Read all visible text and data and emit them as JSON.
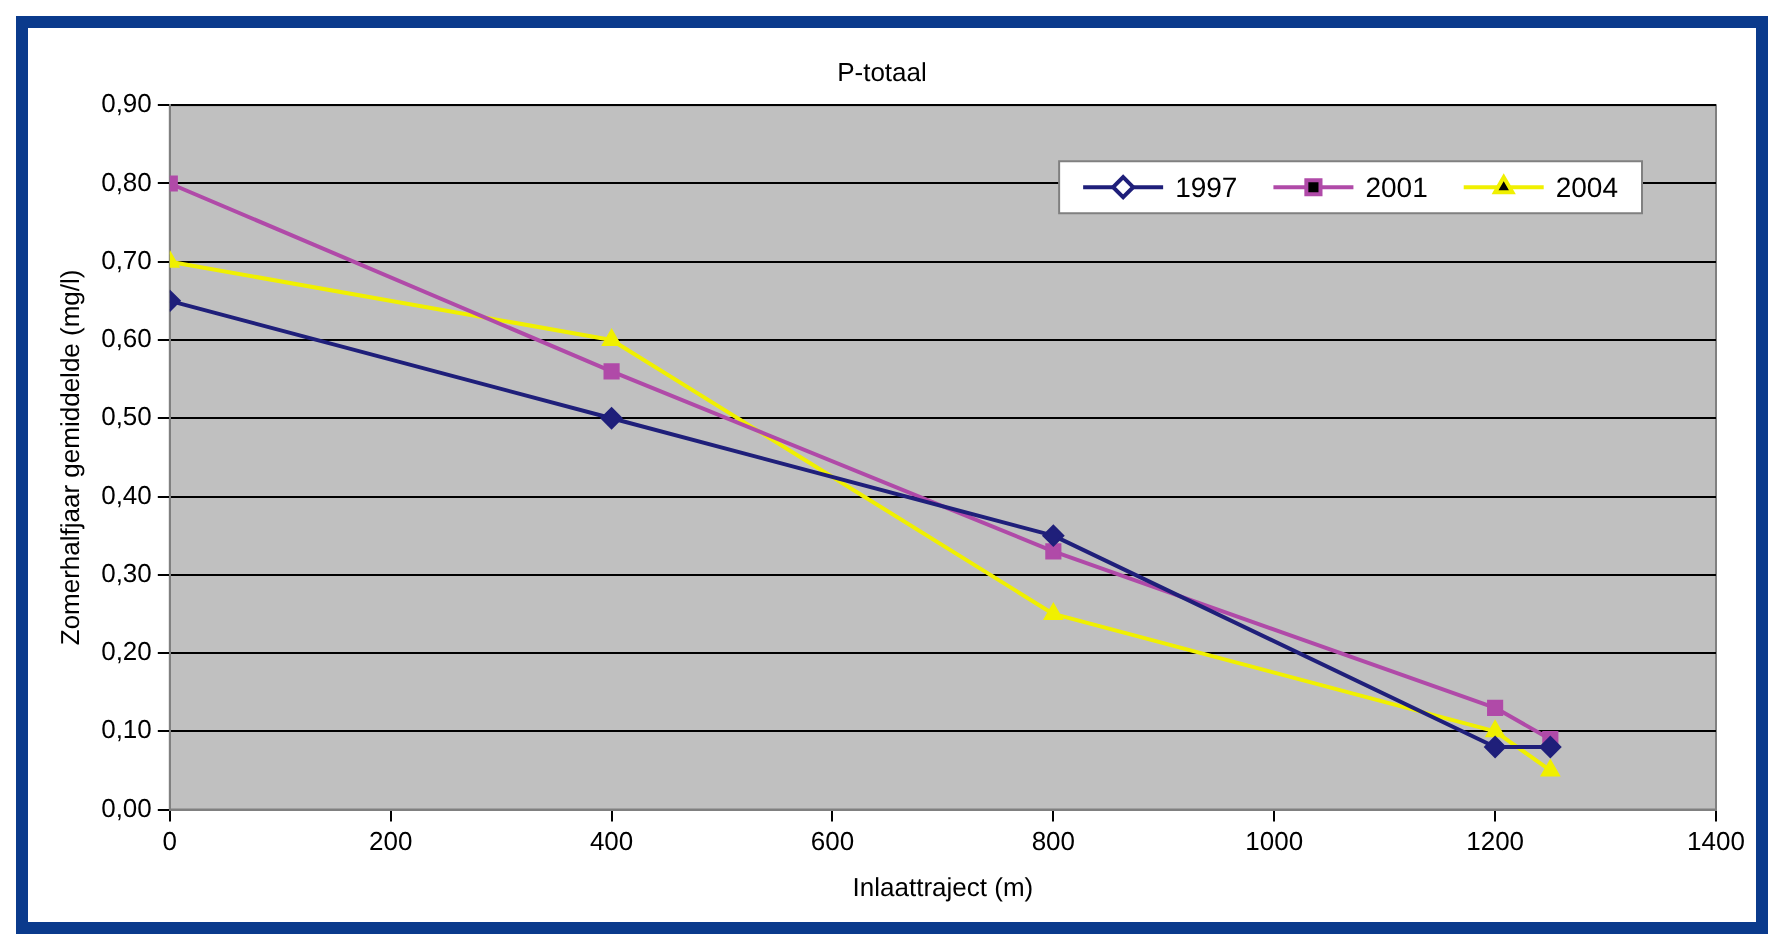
{
  "chart_data": {
    "type": "line",
    "title": "P-totaal",
    "xlabel": "Inlaattraject (m)",
    "ylabel": "Zomerhalfjaar gemiddelde (mg/l)",
    "x": [
      0,
      400,
      800,
      1200,
      1250
    ],
    "series": [
      {
        "name": "1997",
        "color": "#1f1f7a",
        "marker": "diamond",
        "values": [
          0.65,
          0.5,
          0.35,
          0.08,
          0.08
        ]
      },
      {
        "name": "2001",
        "color": "#b04aa8",
        "marker": "square",
        "values": [
          0.8,
          0.56,
          0.33,
          0.13,
          0.09
        ]
      },
      {
        "name": "2004",
        "color": "#f0f000",
        "marker": "triangle",
        "values": [
          0.7,
          0.6,
          0.25,
          0.1,
          0.05
        ]
      }
    ],
    "xlim": [
      0,
      1400
    ],
    "xticks": [
      0,
      200,
      400,
      600,
      800,
      1000,
      1200,
      1400
    ],
    "ylim": [
      0,
      0.9
    ],
    "yticks": [
      {
        "value": 0,
        "label": "0,00"
      },
      {
        "value": 0.1,
        "label": "0,10"
      },
      {
        "value": 0.2,
        "label": "0,20"
      },
      {
        "value": 0.3,
        "label": "0,30"
      },
      {
        "value": 0.4,
        "label": "0,40"
      },
      {
        "value": 0.5,
        "label": "0,50"
      },
      {
        "value": 0.6,
        "label": "0,60"
      },
      {
        "value": 0.7,
        "label": "0,70"
      },
      {
        "value": 0.8,
        "label": "0,80"
      },
      {
        "value": 0.9,
        "label": "0,90"
      }
    ],
    "grid": "y",
    "legend": "top right",
    "line_style": "solid"
  }
}
